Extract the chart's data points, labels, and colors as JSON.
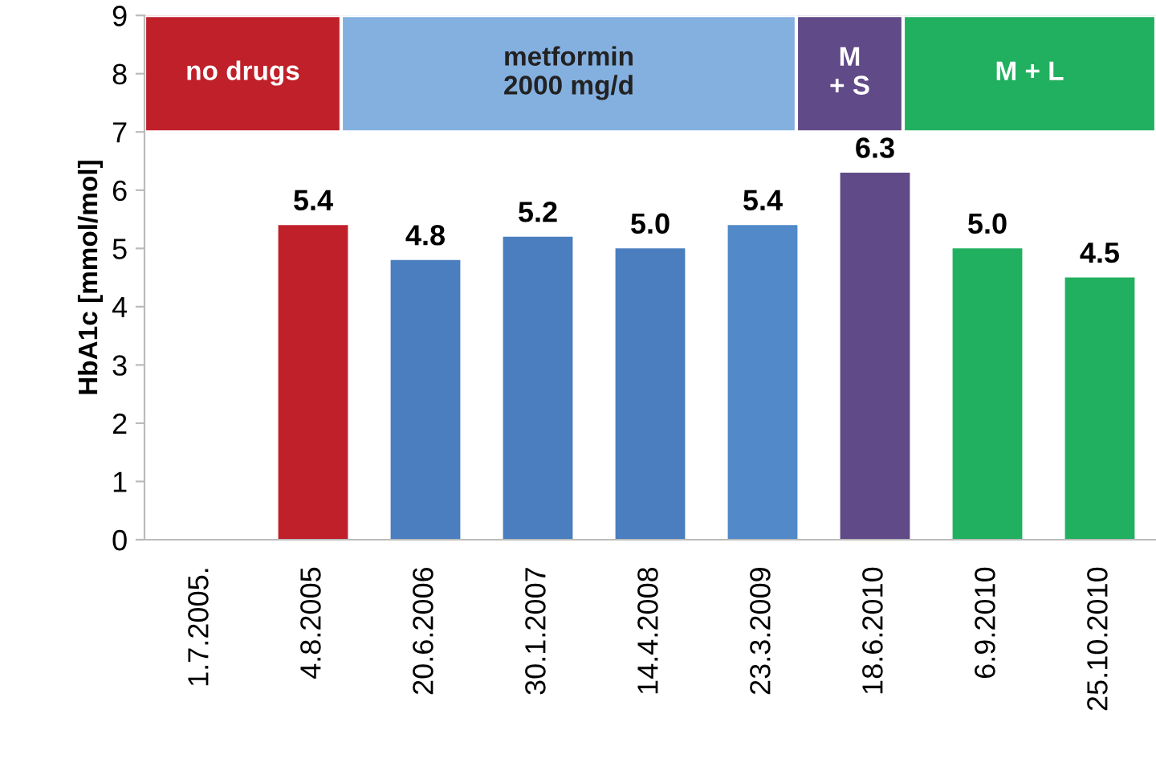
{
  "chart_data": {
    "type": "bar",
    "ylabel": "HbA1c [mmol/mol]",
    "categories": [
      "1.7.2005.",
      "4.8.2005",
      "20.6.2006",
      "30.1.2007",
      "14.4.2008",
      "23.3.2009",
      "18.6.2010",
      "6.9.2010",
      "25.10.2010"
    ],
    "values": [
      null,
      5.4,
      4.8,
      5.2,
      5.0,
      5.4,
      6.3,
      5.0,
      4.5
    ],
    "colors": [
      "#4a7ebf",
      "#c0202a",
      "#4a7ebf",
      "#4a7ebf",
      "#4a7ebf",
      "#5189c9",
      "#604a87",
      "#21b060",
      "#21b060"
    ],
    "value_labels": [
      null,
      "5.4",
      "4.8",
      "5.2",
      "5.0",
      "5.4",
      "6.3",
      "5.0",
      "4.5"
    ],
    "ylim": [
      0,
      9
    ],
    "yticks": [
      0,
      1,
      2,
      3,
      4,
      5,
      6,
      7,
      8,
      9
    ],
    "grid": false,
    "legend": false,
    "annotations": [
      "no drugs",
      "metformin\n2000 mg/d",
      "M\n+ S",
      "M + L"
    ]
  }
}
